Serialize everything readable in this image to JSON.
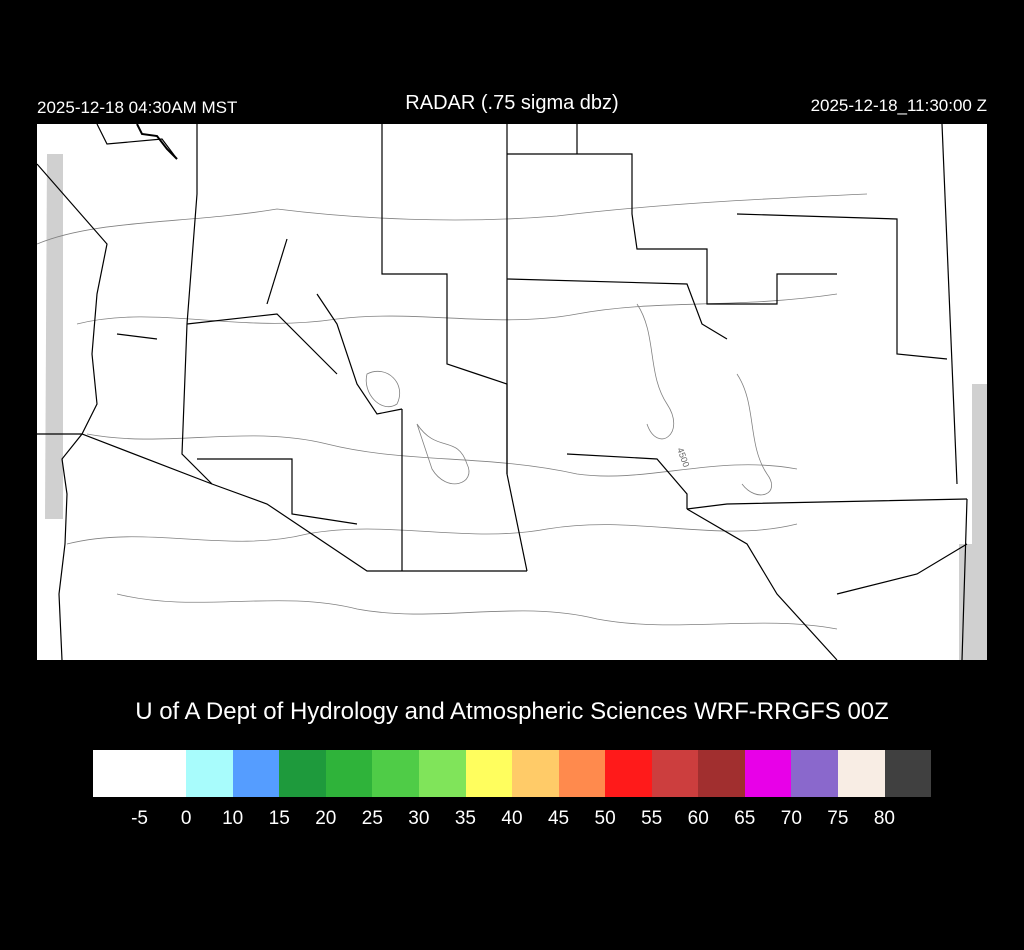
{
  "header": {
    "local_time": "2025-12-18 04:30AM MST",
    "title": "RADAR (.75 sigma dbz)",
    "utc_time": "2025-12-18_11:30:00 Z"
  },
  "map": {
    "contour_label": "4500",
    "background": "#ffffff",
    "no_data_color": "#d0d0d0",
    "border_color": "#000000",
    "contour_color": "#808080"
  },
  "credit": "U of A Dept of Hydrology and Atmospheric Sciences WRF-RRGFS 00Z",
  "colorbar": {
    "colors": [
      "#ffffff",
      "#ffffff",
      "#a8fcfc",
      "#559dff",
      "#1e9a3c",
      "#2fb33a",
      "#4fcc47",
      "#80e45a",
      "#fffe5e",
      "#ffcb68",
      "#ff8a4d",
      "#ff1a1a",
      "#cc3e3e",
      "#a12f2f",
      "#e800e8",
      "#8a68cc",
      "#f8ede4",
      "#404040"
    ],
    "labels": [
      "-5",
      "0",
      "10",
      "15",
      "20",
      "25",
      "30",
      "35",
      "40",
      "45",
      "50",
      "55",
      "60",
      "65",
      "70",
      "75",
      "80"
    ]
  }
}
